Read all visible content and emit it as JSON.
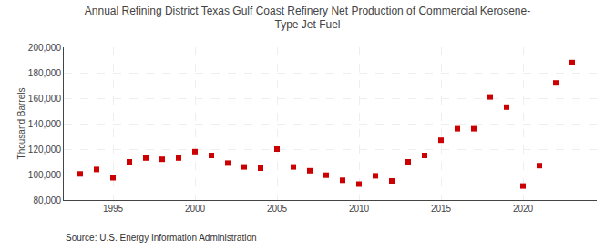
{
  "chart_data": {
    "type": "scatter",
    "title": "Annual Refining District Texas Gulf Coast Refinery Net Production of Commercial Kerosene-\nType Jet Fuel",
    "y_label": "Thousand Barrels",
    "annotations": [
      "Source: U.S. Energy Information Administration"
    ],
    "x": [
      1993,
      1994,
      1995,
      1996,
      1997,
      1998,
      1999,
      2000,
      2001,
      2002,
      2003,
      2004,
      2005,
      2006,
      2007,
      2008,
      2009,
      2010,
      2011,
      2012,
      2013,
      2014,
      2015,
      2016,
      2017,
      2018,
      2019,
      2020,
      2021,
      2022,
      2023
    ],
    "values": [
      100500,
      104000,
      97500,
      110000,
      113000,
      112000,
      113000,
      118000,
      115000,
      109000,
      106000,
      105000,
      120000,
      106000,
      103000,
      99500,
      95500,
      92500,
      99000,
      95000,
      110000,
      115000,
      127000,
      136000,
      136000,
      161000,
      153000,
      91000,
      107000,
      172000,
      188000
    ],
    "color": "#cc0000",
    "marker": "square",
    "xlim": [
      1992,
      2024.5
    ],
    "xticks": [
      1995,
      2000,
      2005,
      2010,
      2015,
      2020
    ],
    "ylim": [
      80000,
      200000
    ],
    "yticks": [
      {
        "value": 80000,
        "label": "80,000"
      },
      {
        "value": 100000,
        "label": "100,000"
      },
      {
        "value": 120000,
        "label": "120,000"
      },
      {
        "value": 140000,
        "label": "140,000"
      },
      {
        "value": 160000,
        "label": "160,000"
      },
      {
        "value": 180000,
        "label": "180,000"
      },
      {
        "value": 200000,
        "label": "200,000"
      }
    ],
    "grid": true
  }
}
